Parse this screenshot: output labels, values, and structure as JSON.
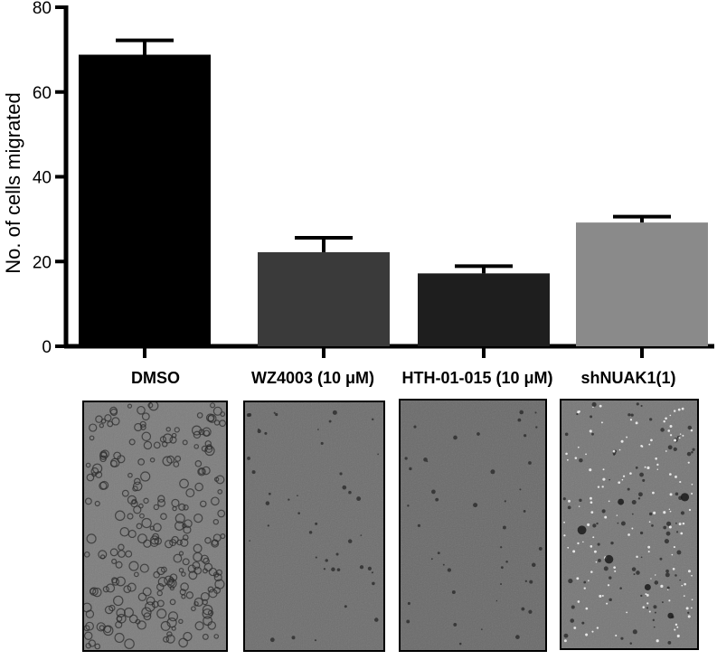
{
  "chart_data": {
    "type": "bar",
    "title": "",
    "xlabel": "",
    "ylabel": "No. of cells migrated",
    "ylim": [
      0,
      80
    ],
    "yticks": [
      0,
      20,
      40,
      60,
      80
    ],
    "grid": false,
    "legend": "none",
    "categories": [
      "DMSO",
      "WZ4003 (10 μM)",
      "HTH-01-015 (10 μM)",
      "shNUAK1(1)"
    ],
    "values": [
      68.8,
      22.2,
      17.2,
      29.2
    ],
    "errors": [
      3.4,
      3.4,
      1.7,
      1.4
    ],
    "bar_colors": [
      "#000000",
      "#3a3a3a",
      "#1e1e1e",
      "#8a8a8a"
    ]
  },
  "micrographs": [
    {
      "condition": "DMSO",
      "tone": "#7d7d7d",
      "density": "high"
    },
    {
      "condition": "WZ4003 (10 μM)",
      "tone": "#6e6e6e",
      "density": "low"
    },
    {
      "condition": "HTH-01-015 (10 μM)",
      "tone": "#6a6a6a",
      "density": "low"
    },
    {
      "condition": "shNUAK1(1)",
      "tone": "#777777",
      "density": "speckled"
    }
  ]
}
